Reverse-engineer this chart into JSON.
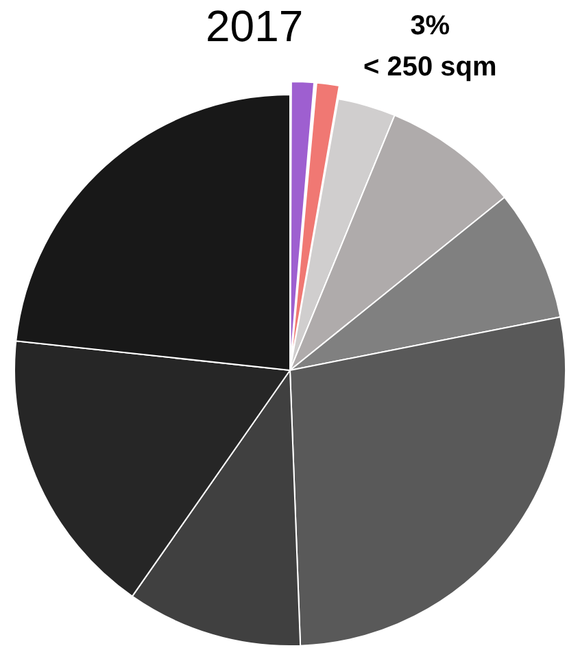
{
  "chart_data": {
    "type": "pie",
    "title": "2017",
    "annotations": [
      "3%",
      "< 250 sqm"
    ],
    "categories": [
      null,
      null,
      null,
      null,
      null,
      null,
      null,
      null,
      null
    ],
    "values": [
      1.4,
      1.4,
      3.4,
      8,
      7.7,
      27.5,
      10.3,
      17,
      23.3
    ],
    "colors": [
      "#9e5fd0",
      "#f07873",
      "#d0cece",
      "#afabab",
      "#808080",
      "#595959",
      "#404040",
      "#262626",
      "#181818"
    ],
    "legend": false
  }
}
